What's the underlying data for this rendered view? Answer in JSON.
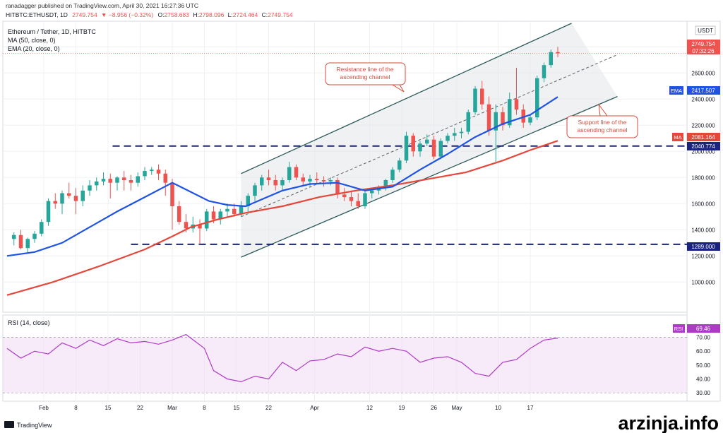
{
  "header": {
    "line1": "ranadagger published on TradingView.com, April 30, 2021 16:27:36 UTC",
    "symbol": "HITBTC:ETHUSDT, 1D",
    "last": "2749.754",
    "change": "▼ −8.956 (−0.32%)",
    "o_label": "O:",
    "o": "2758.683",
    "h_label": "H:",
    "h": "2798.096",
    "l_label": "L:",
    "l": "2724.464",
    "c_label": "C:",
    "c": "2749.754"
  },
  "legend": {
    "title": "Ethereum / Tether, 1D, HITBTC",
    "ma": "MA (50, close, 0)",
    "ema": "EMA (20, close, 0)"
  },
  "rsi_legend": "RSI (14, close)",
  "currency": "USDT",
  "price_badge": {
    "value": "2749.754",
    "countdown": "07:32:26"
  },
  "ema_badge": {
    "label": "EMA",
    "value": "2417.507"
  },
  "ma_badge": {
    "label": "MA",
    "value": "2081.164"
  },
  "level_high_badge": "2040.774",
  "level_low_badge": "1289.000",
  "rsi_badge": {
    "label": "RSI",
    "value": "69.46"
  },
  "annotations": {
    "resistance": [
      "Resistance line of the",
      "ascending channel"
    ],
    "support": [
      "Support line of the",
      "ascending channel"
    ]
  },
  "footer": {
    "brand": "TradingView",
    "watermark": "arzinja.info"
  },
  "colors": {
    "up": "#26a69a",
    "down": "#ef5350",
    "ema": "#1e53e5",
    "ma": "#e5483b",
    "level": "#1a237e",
    "rsi": "#b039c8",
    "annot": "#d84a3a",
    "channel": "#2e5a5a"
  },
  "chart_data": {
    "type": "candlestick",
    "title": "Ethereum / Tether, 1D, HITBTC",
    "ylabel": "USDT",
    "ylim": [
      780,
      2980
    ],
    "yticks": [
      1000,
      1200,
      1400,
      1600,
      1800,
      2000,
      2200,
      2400,
      2600,
      2800
    ],
    "ytick_labels": [
      "1000.000",
      "1200.000",
      "1400.000",
      "1600.000",
      "1800.000",
      "2000.000",
      "2200.000",
      "2400.000",
      "2600.000",
      "2800.000"
    ],
    "xlim": [
      0,
      120
    ],
    "xticks": [
      {
        "x": 8,
        "label": "Feb"
      },
      {
        "x": 15,
        "label": "8"
      },
      {
        "x": 22,
        "label": "15"
      },
      {
        "x": 29,
        "label": "22"
      },
      {
        "x": 36,
        "label": "Mar"
      },
      {
        "x": 43,
        "label": "8"
      },
      {
        "x": 50,
        "label": "15"
      },
      {
        "x": 57,
        "label": "22"
      },
      {
        "x": 67,
        "label": "Apr"
      },
      {
        "x": 79,
        "label": "12"
      },
      {
        "x": 86,
        "label": "19"
      },
      {
        "x": 93,
        "label": "26"
      },
      {
        "x": 98,
        "label": "May"
      },
      {
        "x": 107,
        "label": "10"
      },
      {
        "x": 114,
        "label": "17"
      }
    ],
    "candles": [
      [
        1.5,
        1330,
        1380,
        1280,
        1360
      ],
      [
        3,
        1360,
        1400,
        1250,
        1260
      ],
      [
        4.5,
        1260,
        1340,
        1220,
        1330
      ],
      [
        6,
        1330,
        1390,
        1300,
        1370
      ],
      [
        7.5,
        1370,
        1480,
        1350,
        1460
      ],
      [
        9,
        1460,
        1640,
        1430,
        1620
      ],
      [
        10.5,
        1620,
        1680,
        1560,
        1600
      ],
      [
        12,
        1600,
        1700,
        1520,
        1680
      ],
      [
        13.5,
        1680,
        1760,
        1640,
        1660
      ],
      [
        15,
        1660,
        1720,
        1520,
        1620
      ],
      [
        16.5,
        1620,
        1740,
        1580,
        1700
      ],
      [
        18,
        1700,
        1780,
        1660,
        1740
      ],
      [
        19.5,
        1740,
        1800,
        1700,
        1770
      ],
      [
        21,
        1770,
        1840,
        1740,
        1790
      ],
      [
        22.5,
        1790,
        1830,
        1640,
        1760
      ],
      [
        24,
        1760,
        1810,
        1700,
        1800
      ],
      [
        25.5,
        1800,
        1850,
        1700,
        1780
      ],
      [
        27,
        1780,
        1820,
        1700,
        1760
      ],
      [
        28.5,
        1760,
        1840,
        1730,
        1810
      ],
      [
        30,
        1810,
        1880,
        1780,
        1850
      ],
      [
        31.5,
        1850,
        1880,
        1820,
        1860
      ],
      [
        33,
        1860,
        1900,
        1780,
        1830
      ],
      [
        34.5,
        1830,
        1860,
        1660,
        1760
      ],
      [
        36,
        1760,
        1790,
        1400,
        1580
      ],
      [
        37.5,
        1580,
        1620,
        1440,
        1460
      ],
      [
        39,
        1460,
        1520,
        1380,
        1410
      ],
      [
        40.5,
        1410,
        1500,
        1380,
        1440
      ],
      [
        42,
        1440,
        1480,
        1290,
        1410
      ],
      [
        43.5,
        1410,
        1560,
        1390,
        1540
      ],
      [
        45,
        1540,
        1580,
        1450,
        1480
      ],
      [
        46.5,
        1480,
        1560,
        1440,
        1540
      ],
      [
        48,
        1540,
        1600,
        1500,
        1560
      ],
      [
        49.5,
        1560,
        1600,
        1500,
        1520
      ],
      [
        51,
        1520,
        1620,
        1500,
        1580
      ],
      [
        52.5,
        1580,
        1680,
        1540,
        1660
      ],
      [
        54,
        1660,
        1760,
        1620,
        1740
      ],
      [
        55.5,
        1740,
        1820,
        1700,
        1800
      ],
      [
        57,
        1800,
        1860,
        1740,
        1780
      ],
      [
        58.5,
        1780,
        1820,
        1700,
        1740
      ],
      [
        60,
        1740,
        1800,
        1700,
        1780
      ],
      [
        61.5,
        1780,
        1920,
        1760,
        1880
      ],
      [
        63,
        1880,
        1900,
        1780,
        1800
      ],
      [
        64.5,
        1800,
        1830,
        1740,
        1770
      ],
      [
        66,
        1770,
        1820,
        1730,
        1790
      ],
      [
        67.5,
        1790,
        1840,
        1750,
        1780
      ],
      [
        69,
        1780,
        1810,
        1730,
        1770
      ],
      [
        70.5,
        1770,
        1800,
        1740,
        1780
      ],
      [
        72,
        1780,
        1800,
        1640,
        1670
      ],
      [
        73.5,
        1670,
        1720,
        1620,
        1650
      ],
      [
        75,
        1650,
        1700,
        1580,
        1620
      ],
      [
        76.5,
        1620,
        1680,
        1560,
        1580
      ],
      [
        78,
        1580,
        1700,
        1560,
        1680
      ],
      [
        79.5,
        1680,
        1720,
        1640,
        1700
      ],
      [
        81,
        1700,
        1740,
        1670,
        1720
      ],
      [
        82.5,
        1720,
        1790,
        1700,
        1780
      ],
      [
        84,
        1780,
        1880,
        1760,
        1860
      ],
      [
        85.5,
        1860,
        1950,
        1840,
        1930
      ],
      [
        87,
        1930,
        2150,
        1910,
        2120
      ],
      [
        88.5,
        2120,
        2140,
        1960,
        2000
      ],
      [
        90,
        2000,
        2080,
        1960,
        2060
      ],
      [
        91.5,
        2060,
        2130,
        2040,
        2090
      ],
      [
        93,
        2090,
        2120,
        1940,
        1960
      ],
      [
        94.5,
        1960,
        2100,
        1940,
        2080
      ],
      [
        96,
        2080,
        2140,
        2060,
        2120
      ],
      [
        97.5,
        2120,
        2180,
        2080,
        2140
      ],
      [
        99,
        2140,
        2180,
        2100,
        2150
      ],
      [
        100.5,
        2150,
        2320,
        2130,
        2300
      ],
      [
        102,
        2300,
        2500,
        2280,
        2480
      ],
      [
        103.5,
        2480,
        2540,
        2320,
        2360
      ],
      [
        105,
        2360,
        2420,
        2120,
        2160
      ],
      [
        106.5,
        2160,
        2360,
        1920,
        2300
      ],
      [
        108,
        2300,
        2340,
        2160,
        2200
      ],
      [
        109.5,
        2200,
        2450,
        2180,
        2400
      ],
      [
        111,
        2400,
        2640,
        2280,
        2320
      ],
      [
        112.5,
        2320,
        2360,
        2180,
        2220
      ],
      [
        114,
        2220,
        2280,
        2200,
        2260
      ],
      [
        115.5,
        2260,
        2580,
        2240,
        2560
      ],
      [
        117,
        2560,
        2680,
        2530,
        2660
      ],
      [
        118.5,
        2660,
        2780,
        2640,
        2760
      ],
      [
        120,
        2760,
        2800,
        2720,
        2750
      ]
    ],
    "ema20": [
      [
        0,
        1200
      ],
      [
        6,
        1230
      ],
      [
        12,
        1300
      ],
      [
        18,
        1420
      ],
      [
        24,
        1540
      ],
      [
        30,
        1650
      ],
      [
        36,
        1760
      ],
      [
        40,
        1690
      ],
      [
        44,
        1620
      ],
      [
        48,
        1590
      ],
      [
        52,
        1580
      ],
      [
        56,
        1640
      ],
      [
        60,
        1700
      ],
      [
        66,
        1750
      ],
      [
        72,
        1760
      ],
      [
        78,
        1700
      ],
      [
        84,
        1730
      ],
      [
        90,
        1860
      ],
      [
        96,
        1980
      ],
      [
        102,
        2110
      ],
      [
        108,
        2210
      ],
      [
        114,
        2280
      ],
      [
        120,
        2417
      ]
    ],
    "ma50": [
      [
        0,
        900
      ],
      [
        10,
        1000
      ],
      [
        20,
        1120
      ],
      [
        30,
        1250
      ],
      [
        36,
        1350
      ],
      [
        40,
        1420
      ],
      [
        46,
        1480
      ],
      [
        52,
        1530
      ],
      [
        60,
        1580
      ],
      [
        68,
        1650
      ],
      [
        76,
        1700
      ],
      [
        84,
        1740
      ],
      [
        92,
        1790
      ],
      [
        100,
        1840
      ],
      [
        108,
        1930
      ],
      [
        114,
        2010
      ],
      [
        120,
        2081
      ]
    ],
    "levels": [
      2040.774,
      1289.0
    ],
    "channel": {
      "resistance": [
        [
          51,
          1830
        ],
        [
          123,
          2980
        ]
      ],
      "support": [
        [
          51,
          1190
        ],
        [
          133,
          2420
        ]
      ],
      "midline": [
        [
          51,
          1500
        ],
        [
          133,
          2740
        ]
      ]
    },
    "rsi": {
      "name": "RSI (14, close)",
      "ylim": [
        25,
        85
      ],
      "yticks": [
        30,
        40,
        50,
        60,
        70
      ],
      "ytick_labels": [
        "30.00",
        "40.00",
        "50.00",
        "60.00",
        "70.00"
      ],
      "band": [
        30,
        70
      ],
      "values": [
        [
          0,
          62
        ],
        [
          3,
          55
        ],
        [
          6,
          60
        ],
        [
          9,
          58
        ],
        [
          12,
          66
        ],
        [
          15,
          62
        ],
        [
          18,
          68
        ],
        [
          21,
          64
        ],
        [
          24,
          69
        ],
        [
          27,
          66
        ],
        [
          30,
          67
        ],
        [
          33,
          65
        ],
        [
          36,
          68
        ],
        [
          39,
          72
        ],
        [
          41,
          67
        ],
        [
          43,
          62
        ],
        [
          45,
          46
        ],
        [
          48,
          40
        ],
        [
          51,
          38
        ],
        [
          54,
          42
        ],
        [
          57,
          40
        ],
        [
          60,
          52
        ],
        [
          63,
          46
        ],
        [
          66,
          53
        ],
        [
          69,
          54
        ],
        [
          72,
          58
        ],
        [
          75,
          56
        ],
        [
          78,
          63
        ],
        [
          81,
          60
        ],
        [
          84,
          62
        ],
        [
          87,
          60
        ],
        [
          90,
          52
        ],
        [
          93,
          55
        ],
        [
          96,
          56
        ],
        [
          99,
          52
        ],
        [
          102,
          44
        ],
        [
          105,
          42
        ],
        [
          108,
          52
        ],
        [
          111,
          54
        ],
        [
          114,
          62
        ],
        [
          117,
          68
        ],
        [
          120,
          69.46
        ]
      ]
    }
  }
}
